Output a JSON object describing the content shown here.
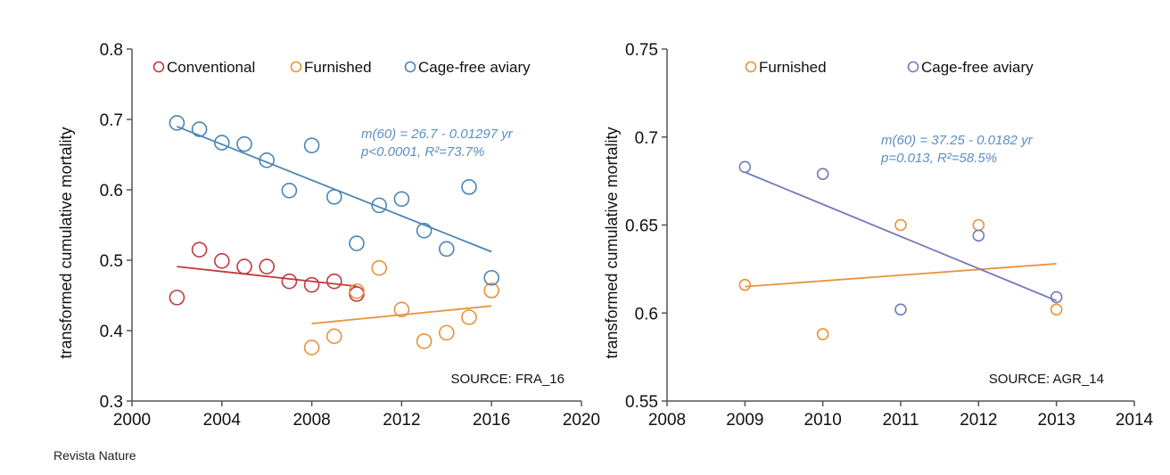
{
  "credit": "Revista Nature",
  "chart_data": [
    {
      "type": "scatter",
      "ylabel": "transformed cumulative mortality",
      "xlim": [
        2000,
        2020
      ],
      "ylim": [
        0.3,
        0.8
      ],
      "xticks": [
        2000,
        2004,
        2008,
        2012,
        2016,
        2020
      ],
      "xtick_labels": [
        "2000",
        "2004",
        "2008",
        "2012",
        "2016",
        "2020"
      ],
      "yticks": [
        0.3,
        0.4,
        0.5,
        0.6,
        0.7,
        0.8
      ],
      "ytick_labels": [
        "0.3",
        "0.4",
        "0.5",
        "0.6",
        "0.7",
        "0.8"
      ],
      "legend_placement": "top",
      "annotation": [
        "m(60) = 26.7 - 0.01297 yr",
        "p<0.0001, R²=73.7%"
      ],
      "source": "SOURCE: FRA_16",
      "series": [
        {
          "name": "Conventional",
          "color": "#c0393b",
          "x": [
            2002,
            2003,
            2004,
            2005,
            2006,
            2007,
            2008,
            2009,
            2010
          ],
          "y": [
            0.447,
            0.515,
            0.499,
            0.491,
            0.491,
            0.47,
            0.465,
            0.47,
            0.452
          ],
          "trend": {
            "x": [
              2002,
              2010
            ],
            "y": [
              0.491,
              0.463
            ]
          }
        },
        {
          "name": "Furnished",
          "color": "#e8923a",
          "x": [
            2008,
            2009,
            2010,
            2011,
            2012,
            2013,
            2014,
            2015,
            2016
          ],
          "y": [
            0.376,
            0.392,
            0.456,
            0.489,
            0.43,
            0.385,
            0.397,
            0.419,
            0.457
          ],
          "trend": {
            "x": [
              2008,
              2016
            ],
            "y": [
              0.41,
              0.435
            ]
          }
        },
        {
          "name": "Cage-free aviary",
          "color": "#4a84b6",
          "x": [
            2002,
            2003,
            2004,
            2005,
            2006,
            2007,
            2008,
            2009,
            2010,
            2011,
            2012,
            2013,
            2014,
            2015,
            2016
          ],
          "y": [
            0.695,
            0.686,
            0.667,
            0.665,
            0.642,
            0.599,
            0.663,
            0.59,
            0.524,
            0.578,
            0.587,
            0.542,
            0.516,
            0.604,
            0.475
          ],
          "trend": {
            "x": [
              2002,
              2016
            ],
            "y": [
              0.69,
              0.512
            ]
          }
        }
      ]
    },
    {
      "type": "scatter",
      "ylabel": "transformed cumulative mortality",
      "xlim": [
        2008,
        2014
      ],
      "ylim": [
        0.55,
        0.75
      ],
      "xticks": [
        2008,
        2009,
        2010,
        2011,
        2012,
        2013,
        2014
      ],
      "xtick_labels": [
        "2008",
        "2009",
        "2010",
        "2011",
        "2012",
        "2013",
        "2014"
      ],
      "yticks": [
        0.55,
        0.6,
        0.65,
        0.7,
        0.75
      ],
      "ytick_labels": [
        "0.55",
        "0.6",
        "0.65",
        "0.7",
        "0.75"
      ],
      "legend_placement": "top",
      "annotation": [
        "m(60) = 37.25 - 0.0182 yr",
        "p=0.013, R²=58.5%"
      ],
      "source": "SOURCE: AGR_14",
      "series": [
        {
          "name": "Furnished",
          "color": "#e8923a",
          "x": [
            2009,
            2010,
            2011,
            2012,
            2013
          ],
          "y": [
            0.616,
            0.588,
            0.65,
            0.65,
            0.602
          ],
          "trend": {
            "x": [
              2009,
              2013
            ],
            "y": [
              0.615,
              0.628
            ]
          }
        },
        {
          "name": "Cage-free aviary",
          "color": "#7479bb",
          "x": [
            2009,
            2010,
            2011,
            2012,
            2013
          ],
          "y": [
            0.683,
            0.679,
            0.602,
            0.644,
            0.609
          ],
          "trend": {
            "x": [
              2009,
              2013
            ],
            "y": [
              0.68,
              0.607
            ]
          }
        }
      ]
    }
  ],
  "annotation_color": "#5b8fc2"
}
